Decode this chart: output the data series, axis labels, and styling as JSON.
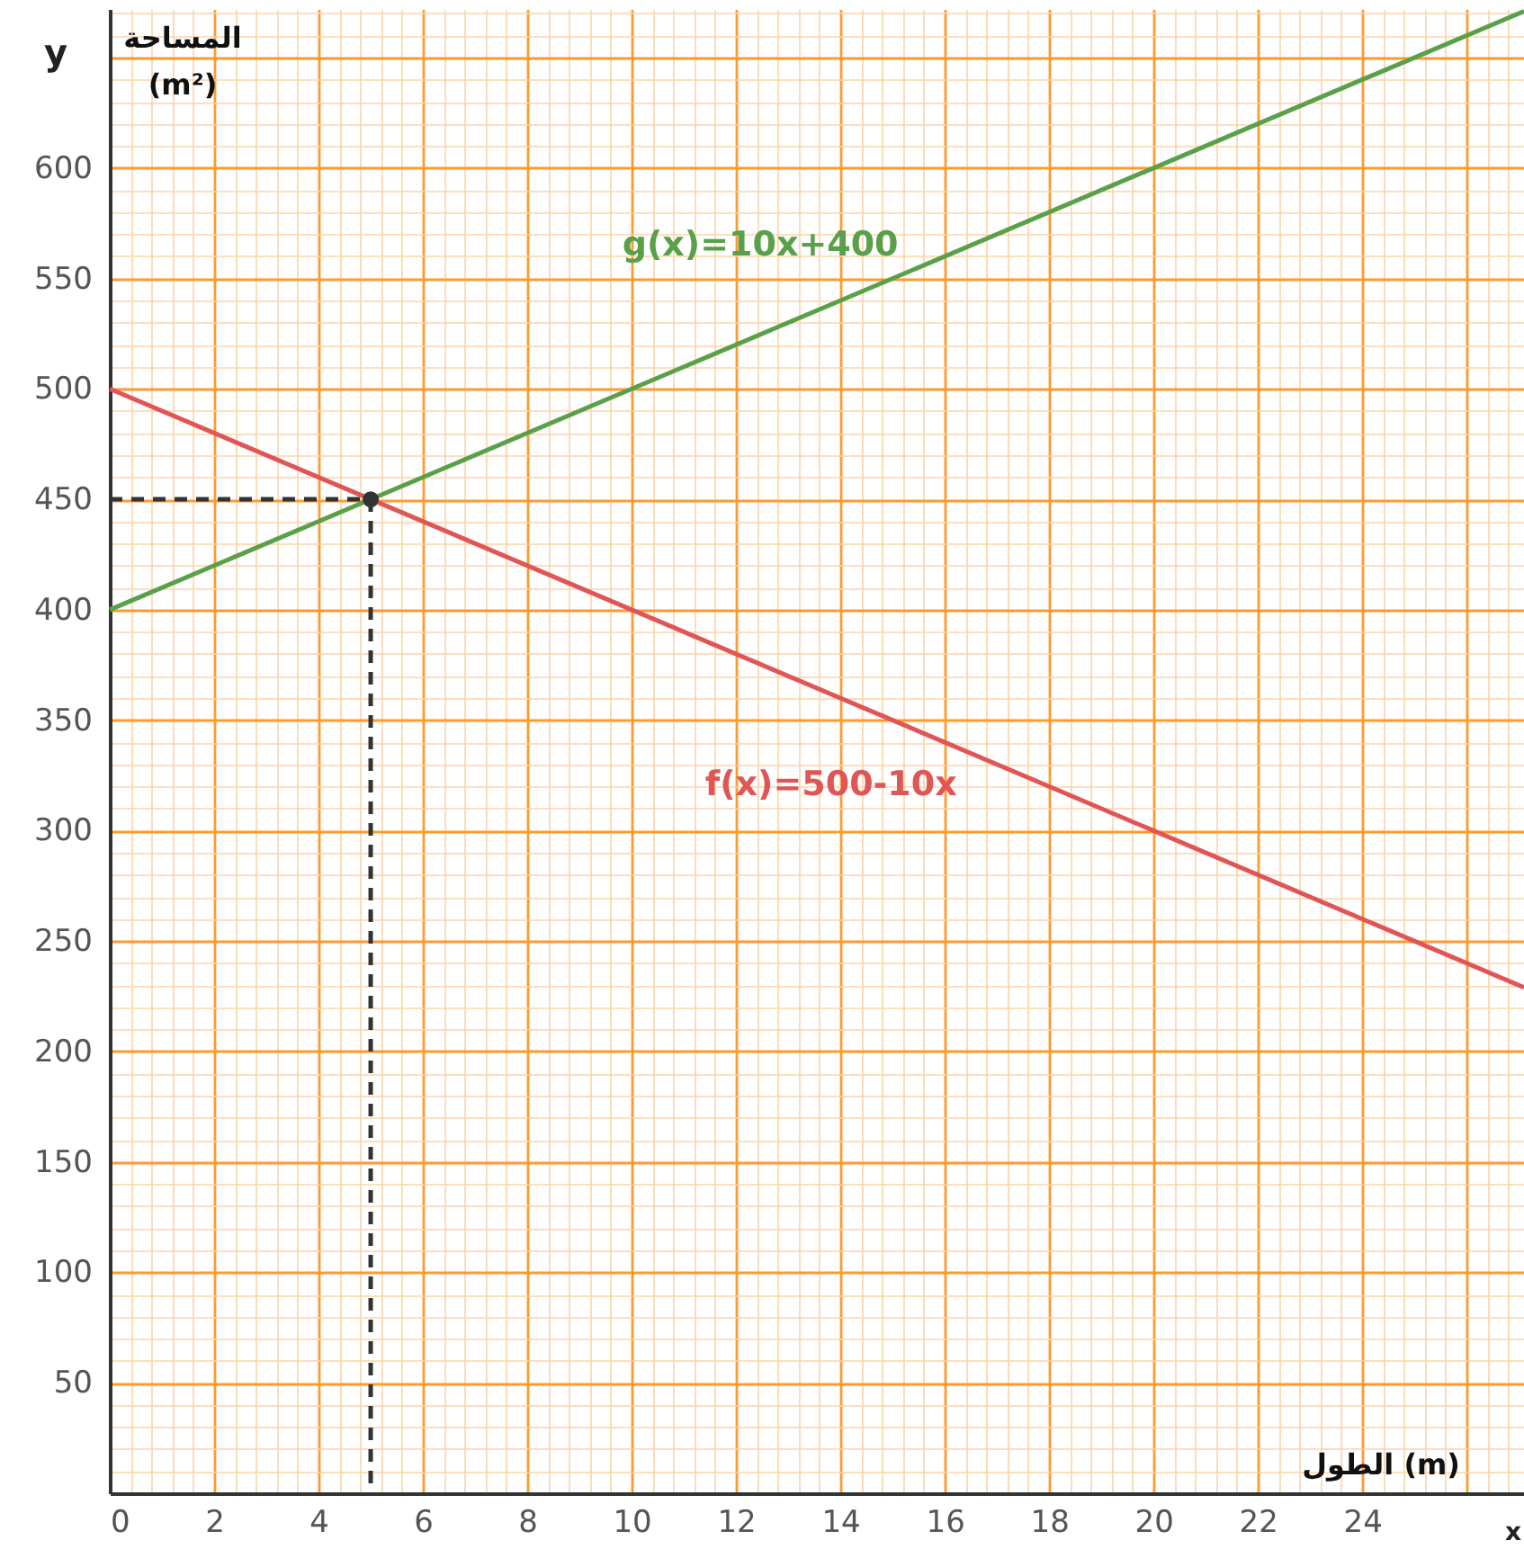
{
  "chart_data": {
    "type": "line",
    "xlabel": "الطول (m)",
    "ylabel": "المساحة\n(m²)",
    "annotations": [
      "y",
      "x"
    ],
    "xlim": [
      0,
      27.1
    ],
    "ylim": [
      0,
      672
    ],
    "xticks": [
      0,
      {
        "value": 0.4,
        "label": null
      },
      {
        "value": 0.8,
        "label": null
      },
      {
        "value": 1.2,
        "label": null
      },
      {
        "value": 1.6,
        "label": null
      },
      2,
      {
        "value": 2.4,
        "label": null
      },
      {
        "value": 2.8,
        "label": null
      },
      {
        "value": 3.2,
        "label": null
      },
      {
        "value": 3.6,
        "label": null
      },
      4,
      {
        "value": 4.4,
        "label": null
      },
      {
        "value": 4.8,
        "label": null
      },
      {
        "value": 5.2,
        "label": null
      },
      {
        "value": 5.6,
        "label": null
      },
      6,
      {
        "value": 6.4,
        "label": null
      },
      {
        "value": 6.8,
        "label": null
      },
      {
        "value": 7.2,
        "label": null
      },
      {
        "value": 7.6,
        "label": null
      },
      8,
      {
        "value": 8.4,
        "label": null
      },
      {
        "value": 8.8,
        "label": null
      },
      {
        "value": 9.2,
        "label": null
      },
      {
        "value": 9.6,
        "label": null
      },
      10,
      {
        "value": 10.4,
        "label": null
      },
      {
        "value": 10.8,
        "label": null
      },
      {
        "value": 11.2,
        "label": null
      },
      {
        "value": 11.6,
        "label": null
      },
      12,
      {
        "value": 12.4,
        "label": null
      },
      {
        "value": 12.8,
        "label": null
      },
      {
        "value": 13.2,
        "label": null
      },
      {
        "value": 13.6,
        "label": null
      },
      14,
      {
        "value": 14.4,
        "label": null
      },
      {
        "value": 14.8,
        "label": null
      },
      {
        "value": 15.2,
        "label": null
      },
      {
        "value": 15.6,
        "label": null
      },
      16,
      {
        "value": 16.4,
        "label": null
      },
      {
        "value": 16.8,
        "label": null
      },
      {
        "value": 17.2,
        "label": null
      },
      {
        "value": 17.6,
        "label": null
      },
      18,
      {
        "value": 18.4,
        "label": null
      },
      {
        "value": 18.8,
        "label": null
      },
      {
        "value": 19.2,
        "label": null
      },
      {
        "value": 19.6,
        "label": null
      },
      20,
      {
        "value": 20.4,
        "label": null
      },
      {
        "value": 20.8,
        "label": null
      },
      {
        "value": 21.2,
        "label": null
      },
      {
        "value": 21.6,
        "label": null
      },
      22,
      {
        "value": 22.4,
        "label": null
      },
      {
        "value": 22.8,
        "label": null
      },
      {
        "value": 23.2,
        "label": null
      },
      {
        "value": 23.6,
        "label": null
      },
      24,
      {
        "value": 24.4,
        "label": null
      },
      {
        "value": 24.8,
        "label": null
      },
      {
        "value": 25.2,
        "label": null
      },
      {
        "value": 25.6,
        "label": null
      },
      {
        "value": 26,
        "label": null
      },
      {
        "value": 26.4,
        "label": null
      },
      {
        "value": 26.8,
        "label": null
      }
    ],
    "yticks": [
      {
        "value": 10,
        "label": null
      },
      {
        "value": 20,
        "label": null
      },
      {
        "value": 30,
        "label": null
      },
      {
        "value": 40,
        "label": null
      },
      50,
      {
        "value": 60,
        "label": null
      },
      {
        "value": 70,
        "label": null
      },
      {
        "value": 80,
        "label": null
      },
      {
        "value": 90,
        "label": null
      },
      100,
      {
        "value": 110,
        "label": null
      },
      {
        "value": 120,
        "label": null
      },
      {
        "value": 130,
        "label": null
      },
      {
        "value": 140,
        "label": null
      },
      150,
      {
        "value": 160,
        "label": null
      },
      {
        "value": 170,
        "label": null
      },
      {
        "value": 180,
        "label": null
      },
      {
        "value": 190,
        "label": null
      },
      200,
      {
        "value": 210,
        "label": null
      },
      {
        "value": 220,
        "label": null
      },
      {
        "value": 230,
        "label": null
      },
      {
        "value": 240,
        "label": null
      },
      250,
      {
        "value": 260,
        "label": null
      },
      {
        "value": 270,
        "label": null
      },
      {
        "value": 280,
        "label": null
      },
      {
        "value": 290,
        "label": null
      },
      300,
      {
        "value": 310,
        "label": null
      },
      {
        "value": 320,
        "label": null
      },
      {
        "value": 330,
        "label": null
      },
      {
        "value": 340,
        "label": null
      },
      350,
      {
        "value": 360,
        "label": null
      },
      {
        "value": 370,
        "label": null
      },
      {
        "value": 380,
        "label": null
      },
      {
        "value": 390,
        "label": null
      },
      400,
      {
        "value": 410,
        "label": null
      },
      {
        "value": 420,
        "label": null
      },
      {
        "value": 430,
        "label": null
      },
      {
        "value": 440,
        "label": null
      },
      450,
      {
        "value": 460,
        "label": null
      },
      {
        "value": 470,
        "label": null
      },
      {
        "value": 480,
        "label": null
      },
      {
        "value": 490,
        "label": null
      },
      500,
      {
        "value": 510,
        "label": null
      },
      {
        "value": 520,
        "label": null
      },
      {
        "value": 530,
        "label": null
      },
      {
        "value": 540,
        "label": null
      },
      550,
      {
        "value": 560,
        "label": null
      },
      {
        "value": 570,
        "label": null
      },
      {
        "value": 580,
        "label": null
      },
      {
        "value": 590,
        "label": null
      },
      600,
      {
        "value": 610,
        "label": null
      },
      {
        "value": 620,
        "label": null
      },
      {
        "value": 630,
        "label": null
      },
      {
        "value": 640,
        "label": null
      },
      {
        "value": 650,
        "label": null
      },
      {
        "value": 660,
        "label": null
      },
      {
        "value": 670,
        "label": null
      }
    ],
    "grid": true,
    "series": [
      {
        "name": "g(x)=10x+400",
        "color": "#5aa04a",
        "x": [
          0,
          27.1
        ],
        "values": [
          400,
          671
        ],
        "line_style": "solid",
        "marker": "none"
      },
      {
        "name": "f(x)=500-10x",
        "color": "#e05555",
        "x": [
          0,
          27.1
        ],
        "values": [
          500,
          229
        ],
        "line_style": "solid",
        "marker": "none"
      },
      {
        "color": "#333333",
        "x": [
          0,
          5
        ],
        "values": [
          450,
          450
        ],
        "line_style": "dashed",
        "marker": "none"
      },
      {
        "color": "#333333",
        "x": [
          5,
          5
        ],
        "values": [
          450,
          0
        ],
        "line_style": "dashed",
        "marker": "none"
      },
      {
        "type": "scatter",
        "color": "#333333",
        "x": [
          5
        ],
        "values": [
          450
        ],
        "marker": "circle"
      }
    ]
  }
}
